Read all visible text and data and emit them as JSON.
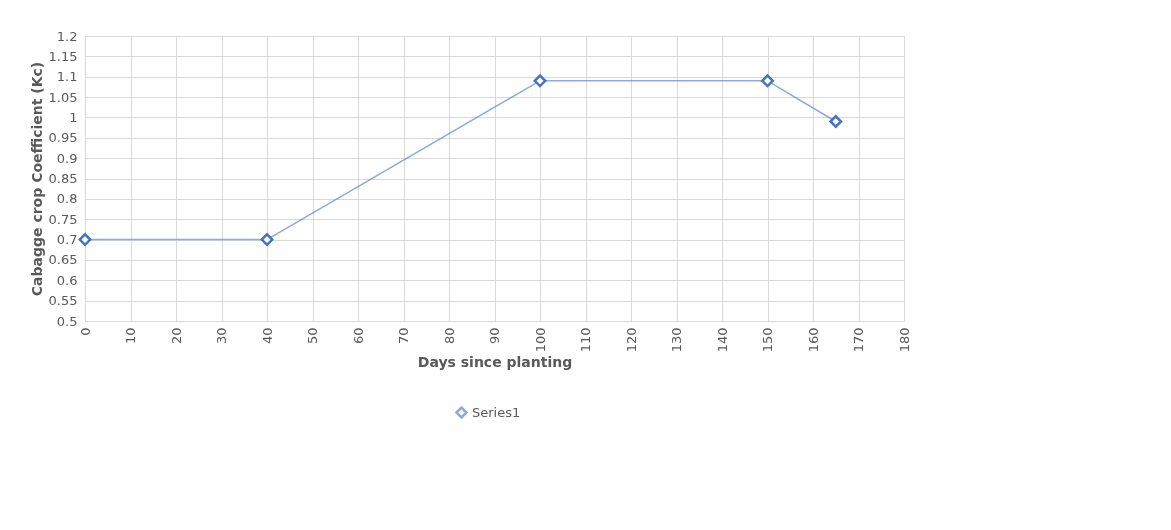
{
  "chart_data": {
    "type": "line",
    "xlabel": "Days since planting",
    "ylabel": "Cabagge crop Coefficient (Kc)",
    "x": [
      0,
      40,
      100,
      150,
      165
    ],
    "series": [
      {
        "name": "Series1",
        "color": "#4472c4",
        "values": [
          0.7,
          0.7,
          1.09,
          1.09,
          0.99
        ]
      }
    ],
    "xlim": [
      0,
      180
    ],
    "xticks": [
      0,
      10,
      20,
      30,
      40,
      50,
      60,
      70,
      80,
      90,
      100,
      110,
      120,
      130,
      140,
      150,
      160,
      170,
      180
    ],
    "ylim": [
      0.5,
      1.2
    ],
    "yticks": [
      0.5,
      0.55,
      0.6,
      0.65,
      0.7,
      0.75,
      0.8,
      0.85,
      0.9,
      0.95,
      1,
      1.05,
      1.1,
      1.15,
      1.2
    ],
    "grid": true,
    "legend": "bottom",
    "marker": "diamond",
    "line_style": "solid"
  }
}
